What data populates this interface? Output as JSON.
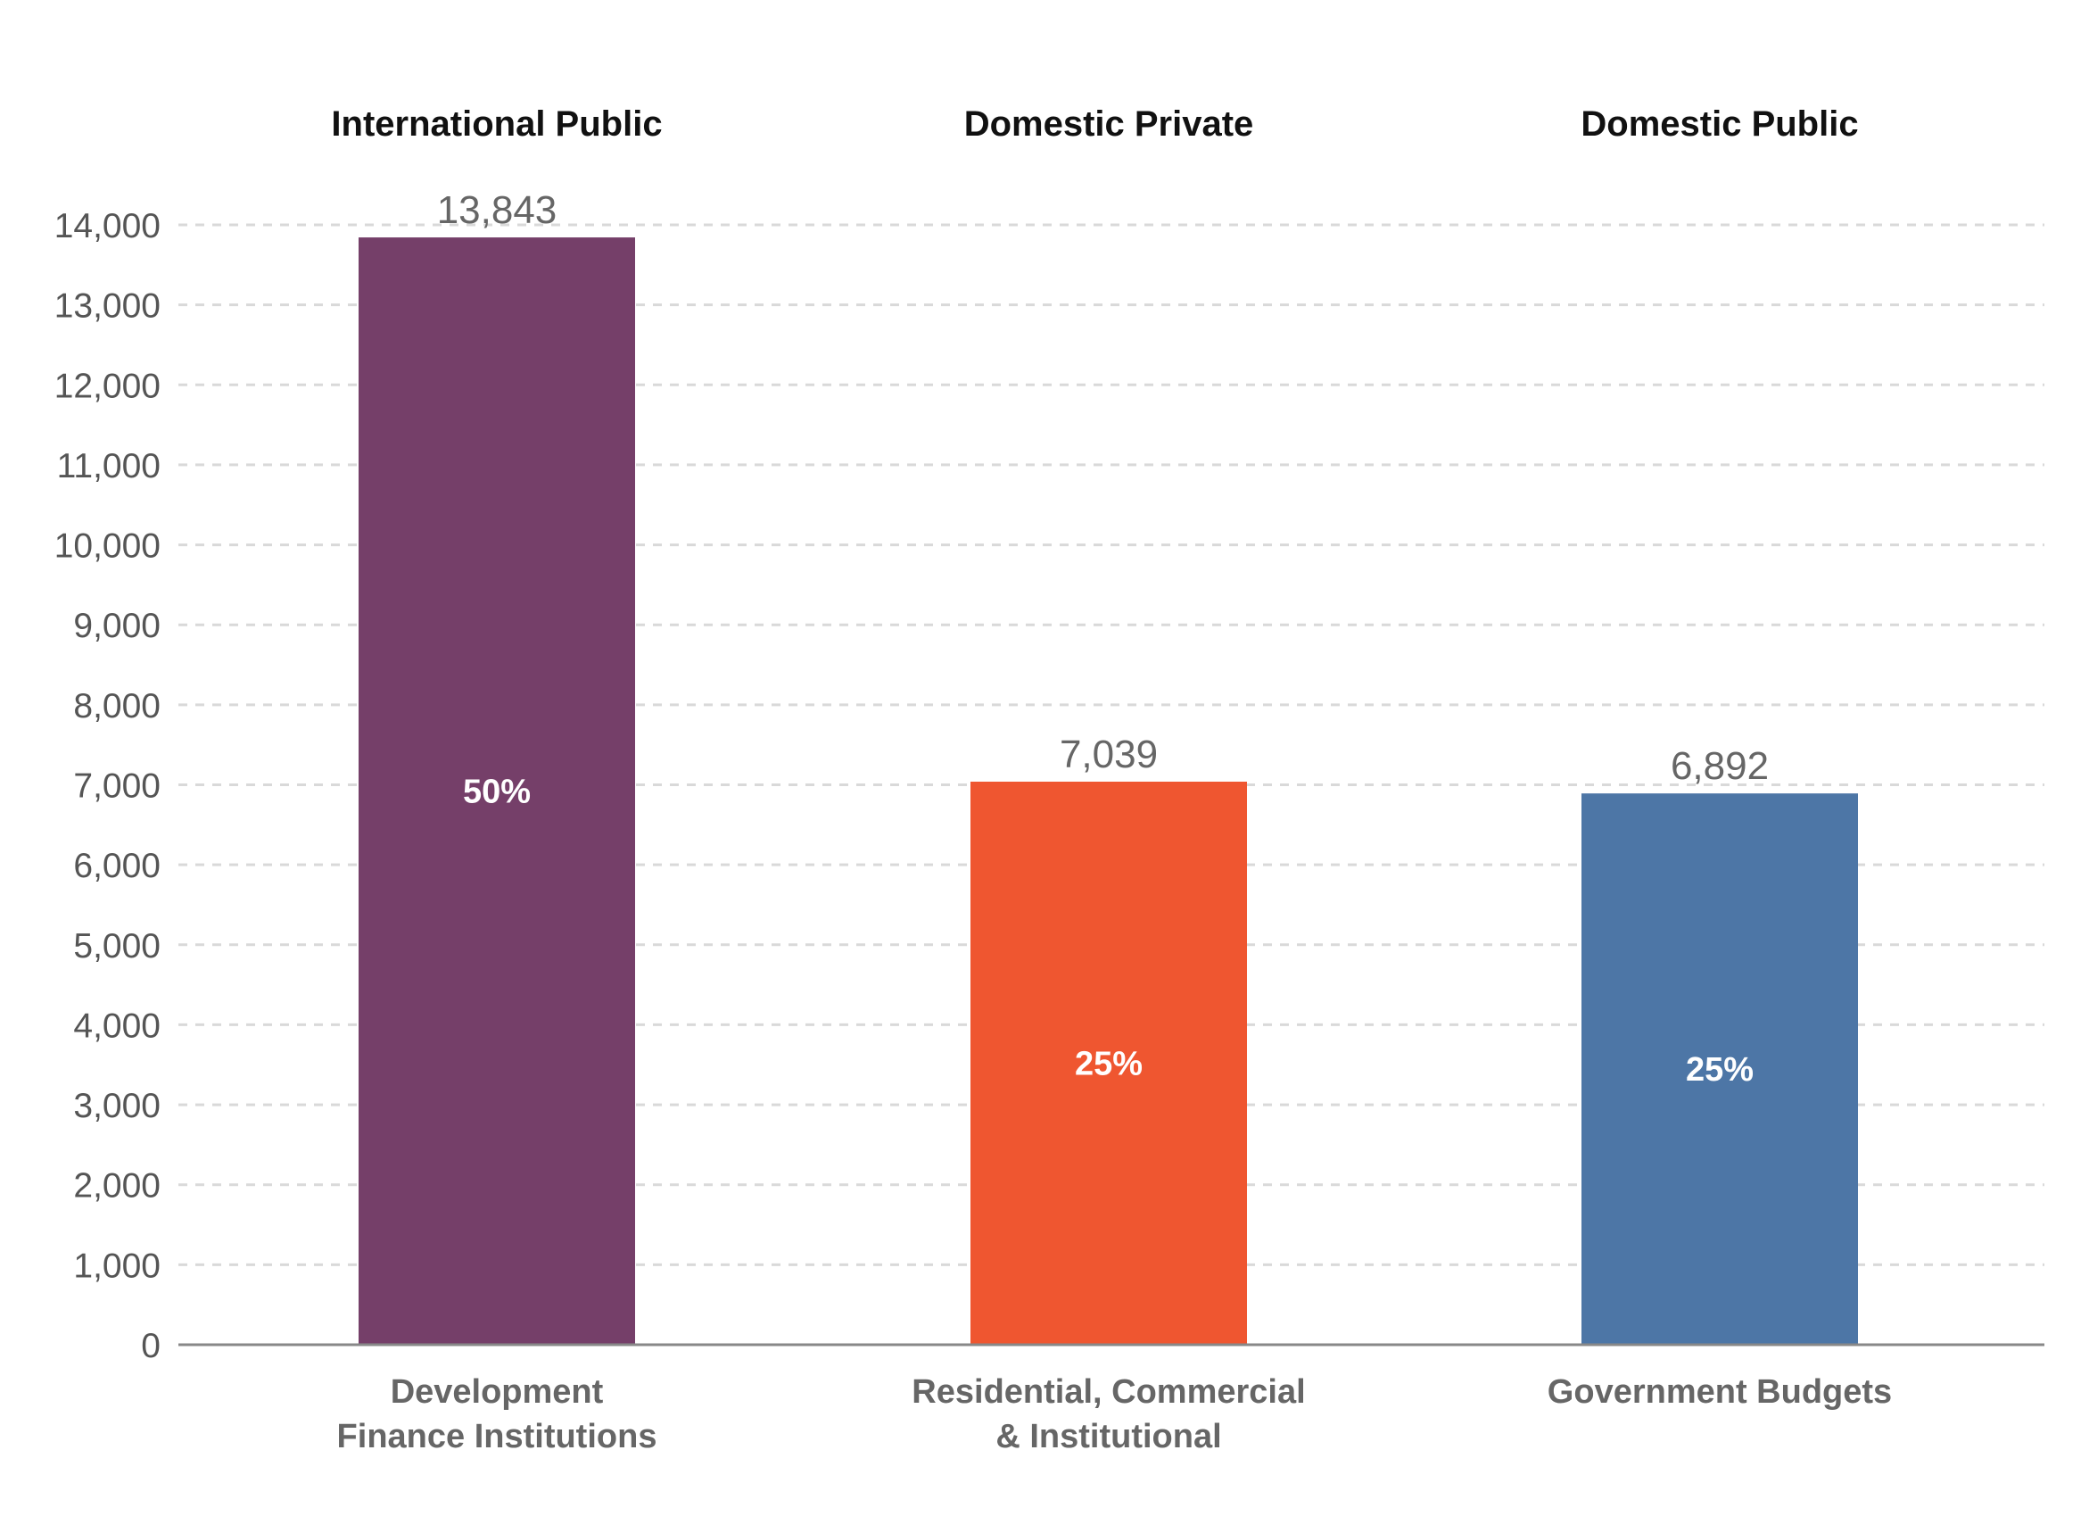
{
  "chart_data": {
    "type": "bar",
    "title": "",
    "xlabel": "",
    "ylabel": "",
    "ylim": [
      0,
      14000
    ],
    "yticks": [
      0,
      1000,
      2000,
      3000,
      4000,
      5000,
      6000,
      7000,
      8000,
      9000,
      10000,
      11000,
      12000,
      13000,
      14000
    ],
    "ytick_labels": [
      "0",
      "1,000",
      "2,000",
      "3,000",
      "4,000",
      "5,000",
      "6,000",
      "7,000",
      "8,000",
      "9,000",
      "10,000",
      "11,000",
      "12,000",
      "13,000",
      "14,000"
    ],
    "grid": true,
    "groups": [
      "International Public",
      "Domestic Private",
      "Domestic Public"
    ],
    "categories": [
      [
        "Development",
        "Finance Institutions"
      ],
      [
        "Residential, Commercial",
        "& Institutional"
      ],
      [
        "Government Budgets"
      ]
    ],
    "values": [
      13843,
      7039,
      6892
    ],
    "value_labels": [
      "13,843",
      "7,039",
      "6,892"
    ],
    "percent_labels": [
      "50%",
      "25%",
      "25%"
    ],
    "colors": [
      "#753f69",
      "#ef5630",
      "#4d76a6"
    ]
  }
}
